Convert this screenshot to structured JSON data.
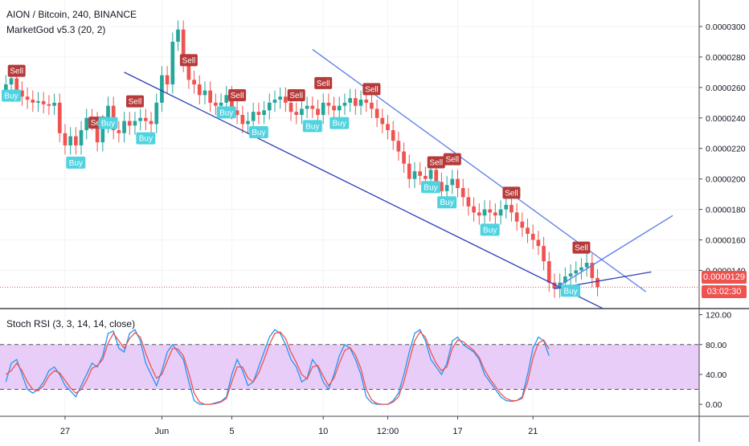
{
  "header": {
    "symbol_line": "AION / Bitcoin, 240, BINANCE",
    "indicator_line": "MarketGod v5.3 (20, 2)",
    "oscillator_title": "Stoch RSI (3, 3, 14, 14, close)"
  },
  "price_tags": {
    "last_price": "0.0000129",
    "countdown": "03:02:30"
  },
  "colors": {
    "up": "#26a69a",
    "down": "#ef5350",
    "trendline_dark": "#2a3fb5",
    "trendline_light": "#5b7de8",
    "sell_badge": "#b73a3a",
    "buy_badge": "#4fd3e0",
    "stoch_k": "#2196f3",
    "stoch_d": "#ef5350",
    "stoch_band": "#e1bcf7"
  },
  "chart_data": [
    {
      "type": "candlestick",
      "ylim": [
        1.16e-05,
        3.1e-05
      ],
      "y_tick_labels": [
        "0.0000300",
        "0.0000280",
        "0.0000260",
        "0.0000240",
        "0.0000220",
        "0.0000200",
        "0.0000180",
        "0.0000160",
        "0.0000140"
      ],
      "y_tick_values": [
        3e-05,
        2.8e-05,
        2.6e-05,
        2.4e-05,
        2.2e-05,
        2e-05,
        1.8e-05,
        1.6e-05,
        1.4e-05
      ],
      "x_tick_labels": [
        "27",
        "Jun",
        "5",
        "10",
        "12:00",
        "17",
        "21"
      ],
      "x_tick_bar_index": [
        11,
        29,
        42,
        59,
        71,
        84,
        98
      ],
      "last_price": 1.29e-05,
      "closes": [
        2.62e-05,
        2.66e-05,
        2.58e-05,
        2.54e-05,
        2.52e-05,
        2.5e-05,
        2.51e-05,
        2.49e-05,
        2.48e-05,
        2.5e-05,
        2.3e-05,
        2.22e-05,
        2.28e-05,
        2.22e-05,
        2.32e-05,
        2.4e-05,
        2.38e-05,
        2.24e-05,
        2.36e-05,
        2.48e-05,
        2.32e-05,
        2.3e-05,
        2.38e-05,
        2.35e-05,
        2.38e-05,
        2.4e-05,
        2.38e-05,
        2.36e-05,
        2.5e-05,
        2.68e-05,
        2.62e-05,
        2.9e-05,
        2.98e-05,
        2.76e-05,
        2.65e-05,
        2.62e-05,
        2.55e-05,
        2.58e-05,
        2.5e-05,
        2.48e-05,
        2.5e-05,
        2.55e-05,
        2.45e-05,
        2.42e-05,
        2.36e-05,
        2.38e-05,
        2.44e-05,
        2.42e-05,
        2.45e-05,
        2.5e-05,
        2.52e-05,
        2.54e-05,
        2.5e-05,
        2.44e-05,
        2.42e-05,
        2.46e-05,
        2.48e-05,
        2.46e-05,
        2.42e-05,
        2.5e-05,
        2.48e-05,
        2.45e-05,
        2.48e-05,
        2.5e-05,
        2.53e-05,
        2.48e-05,
        2.52e-05,
        2.5e-05,
        2.46e-05,
        2.4e-05,
        2.36e-05,
        2.32e-05,
        2.25e-05,
        2.18e-05,
        2.1e-05,
        2e-05,
        2.05e-05,
        2.02e-05,
        2e-05,
        2.06e-05,
        1.98e-05,
        1.92e-05,
        1.96e-05,
        2e-05,
        1.94e-05,
        1.88e-05,
        1.82e-05,
        1.78e-05,
        1.76e-05,
        1.8e-05,
        1.78e-05,
        1.76e-05,
        1.8e-05,
        1.83e-05,
        1.78e-05,
        1.72e-05,
        1.68e-05,
        1.64e-05,
        1.6e-05,
        1.56e-05,
        1.46e-05,
        1.32e-05,
        1.28e-05,
        1.32e-05,
        1.36e-05,
        1.38e-05,
        1.4e-05,
        1.42e-05,
        1.45e-05,
        1.35e-05,
        1.29e-05
      ],
      "signals": [
        {
          "label": "Sell",
          "bar": 2,
          "side": "sell"
        },
        {
          "label": "Buy",
          "bar": 1,
          "side": "buy"
        },
        {
          "label": "Sell",
          "bar": 17,
          "side": "sell"
        },
        {
          "label": "Buy",
          "bar": 13,
          "side": "buy"
        },
        {
          "label": "Buy",
          "bar": 19,
          "side": "buy"
        },
        {
          "label": "Sell",
          "bar": 24,
          "side": "sell"
        },
        {
          "label": "Buy",
          "bar": 26,
          "side": "buy"
        },
        {
          "label": "Sell",
          "bar": 34,
          "side": "sell"
        },
        {
          "label": "Sell",
          "bar": 43,
          "side": "sell"
        },
        {
          "label": "Buy",
          "bar": 41,
          "side": "buy"
        },
        {
          "label": "Buy",
          "bar": 47,
          "side": "buy"
        },
        {
          "label": "Sell",
          "bar": 54,
          "side": "sell"
        },
        {
          "label": "Sell",
          "bar": 59,
          "side": "sell"
        },
        {
          "label": "Buy",
          "bar": 57,
          "side": "buy"
        },
        {
          "label": "Buy",
          "bar": 62,
          "side": "buy"
        },
        {
          "label": "Sell",
          "bar": 68,
          "side": "sell"
        },
        {
          "label": "Sell",
          "bar": 80,
          "side": "sell"
        },
        {
          "label": "Sell",
          "bar": 83,
          "side": "sell"
        },
        {
          "label": "Buy",
          "bar": 79,
          "side": "buy"
        },
        {
          "label": "Buy",
          "bar": 82,
          "side": "buy"
        },
        {
          "label": "Sell",
          "bar": 94,
          "side": "sell"
        },
        {
          "label": "Buy",
          "bar": 90,
          "side": "buy"
        },
        {
          "label": "Sell",
          "bar": 107,
          "side": "sell"
        },
        {
          "label": "Buy",
          "bar": 105,
          "side": "buy"
        }
      ],
      "trendlines": [
        {
          "from": [
            22,
            2.7e-05
          ],
          "to": [
            111,
            1.15e-05
          ],
          "tone": "dark"
        },
        {
          "from": [
            57,
            2.85e-05
          ],
          "to": [
            119,
            1.26e-05
          ],
          "tone": "light"
        },
        {
          "from": [
            102,
            1.28e-05
          ],
          "to": [
            124,
            1.76e-05
          ],
          "tone": "light"
        },
        {
          "from": [
            102,
            1.28e-05
          ],
          "to": [
            120,
            1.39e-05
          ],
          "tone": "dark"
        }
      ]
    },
    {
      "type": "line",
      "title": "Stoch RSI (3, 3, 14, 14, close)",
      "ylim": [
        -16,
        126
      ],
      "y_tick_labels": [
        "120.00",
        "80.00",
        "40.00",
        "0.00"
      ],
      "y_tick_values": [
        120,
        80,
        40,
        0
      ],
      "band": [
        20,
        80
      ],
      "series": [
        {
          "name": "K",
          "values": [
            30,
            55,
            60,
            40,
            20,
            15,
            20,
            30,
            45,
            50,
            40,
            25,
            18,
            10,
            25,
            40,
            55,
            50,
            65,
            95,
            98,
            75,
            70,
            95,
            100,
            85,
            55,
            40,
            25,
            45,
            70,
            80,
            70,
            60,
            30,
            5,
            0,
            0,
            0,
            2,
            4,
            10,
            40,
            60,
            45,
            25,
            30,
            50,
            70,
            90,
            100,
            95,
            80,
            60,
            50,
            30,
            35,
            60,
            50,
            30,
            20,
            40,
            65,
            80,
            75,
            60,
            40,
            10,
            2,
            0,
            0,
            0,
            5,
            15,
            40,
            70,
            95,
            100,
            85,
            60,
            50,
            40,
            55,
            85,
            90,
            80,
            75,
            70,
            60,
            40,
            30,
            20,
            10,
            5,
            4,
            5,
            10,
            40,
            75,
            90,
            85,
            65
          ]
        },
        {
          "name": "D",
          "values": [
            40,
            45,
            55,
            45,
            30,
            20,
            18,
            25,
            38,
            45,
            42,
            32,
            22,
            15,
            20,
            32,
            48,
            52,
            60,
            82,
            95,
            85,
            75,
            88,
            96,
            90,
            68,
            50,
            35,
            40,
            58,
            75,
            74,
            65,
            42,
            15,
            3,
            0,
            0,
            1,
            3,
            8,
            30,
            50,
            50,
            35,
            30,
            42,
            60,
            80,
            95,
            97,
            88,
            70,
            56,
            40,
            34,
            50,
            52,
            38,
            25,
            35,
            55,
            72,
            76,
            66,
            48,
            20,
            6,
            1,
            0,
            0,
            3,
            10,
            30,
            58,
            85,
            97,
            90,
            70,
            55,
            45,
            50,
            75,
            86,
            84,
            78,
            72,
            63,
            46,
            34,
            24,
            14,
            8,
            5,
            5,
            8,
            30,
            62,
            82,
            86,
            74
          ]
        }
      ]
    }
  ]
}
